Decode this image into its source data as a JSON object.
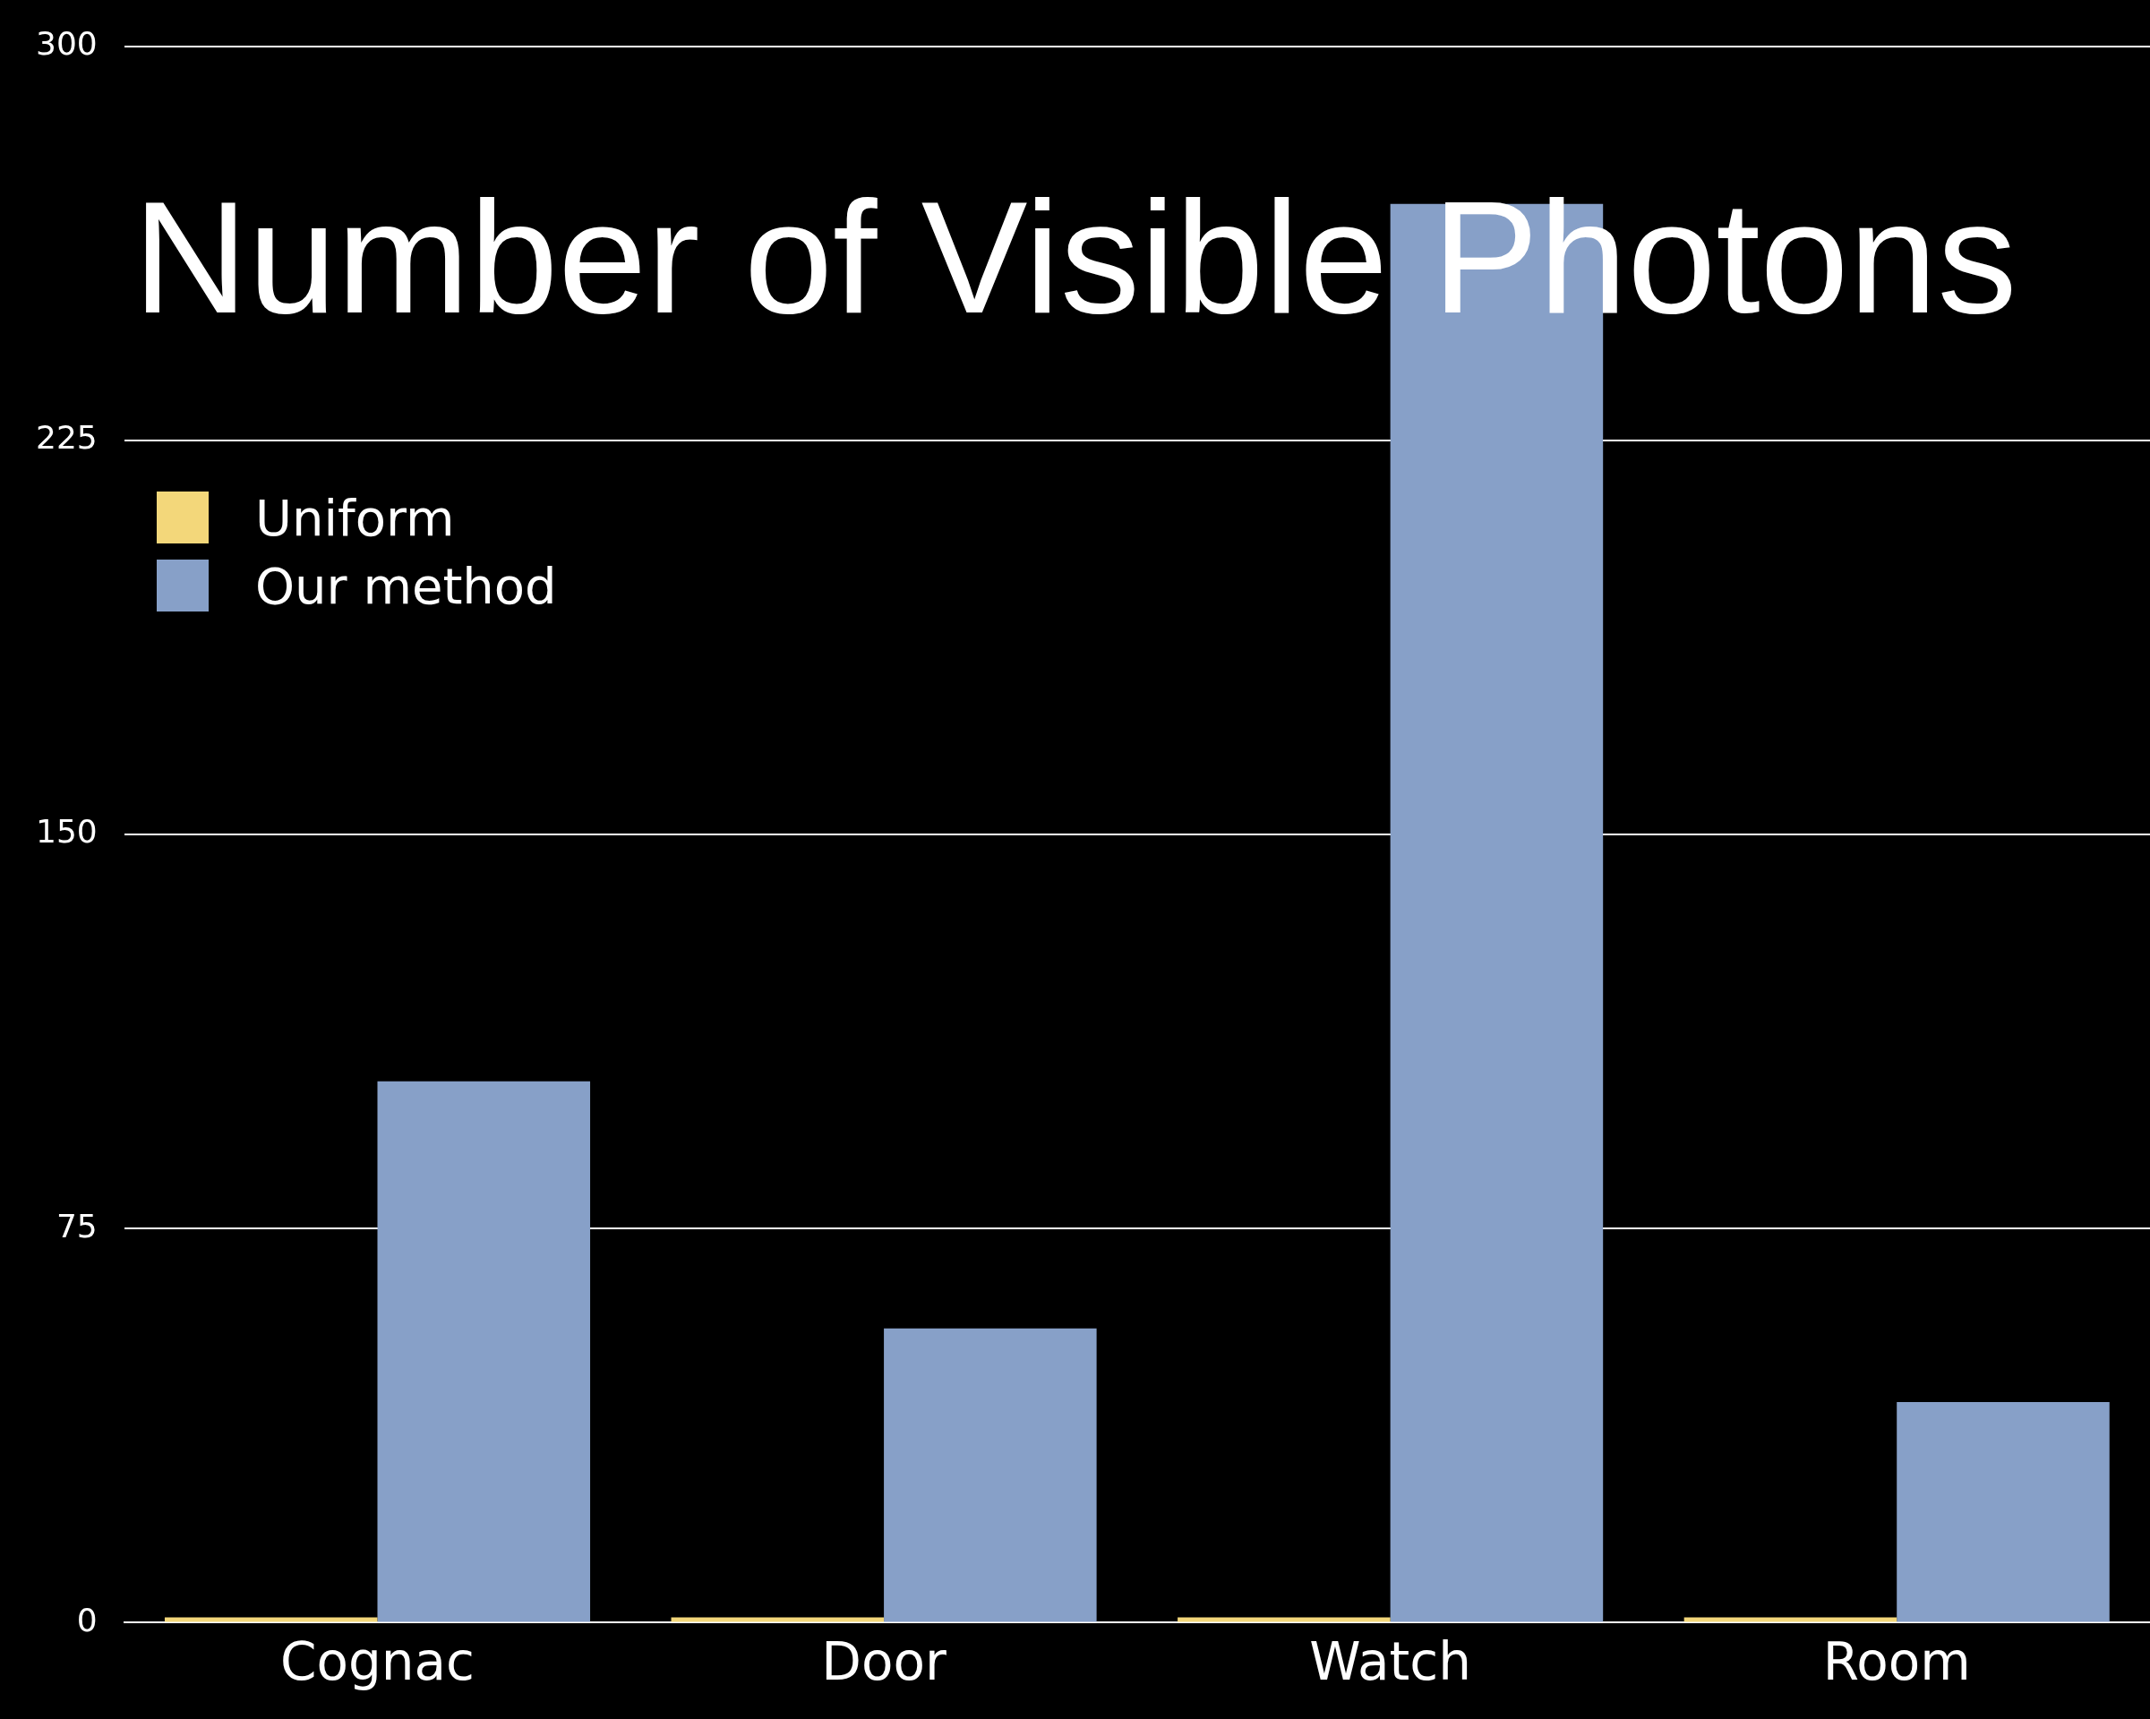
{
  "chart_data": {
    "type": "bar",
    "title": "Number of Visible Photons",
    "categories": [
      "Cognac",
      "Door",
      "Watch",
      "Room"
    ],
    "series": [
      {
        "name": "Uniform",
        "color": "#f3d77a",
        "values": [
          1,
          1,
          1,
          1
        ]
      },
      {
        "name": "Our method",
        "color": "#87a0c8",
        "values": [
          103,
          56,
          270,
          42
        ]
      }
    ],
    "ylim": [
      0,
      300
    ],
    "yticks": [
      0,
      75,
      150,
      225,
      300
    ],
    "grid": "y",
    "legend": "top left"
  }
}
